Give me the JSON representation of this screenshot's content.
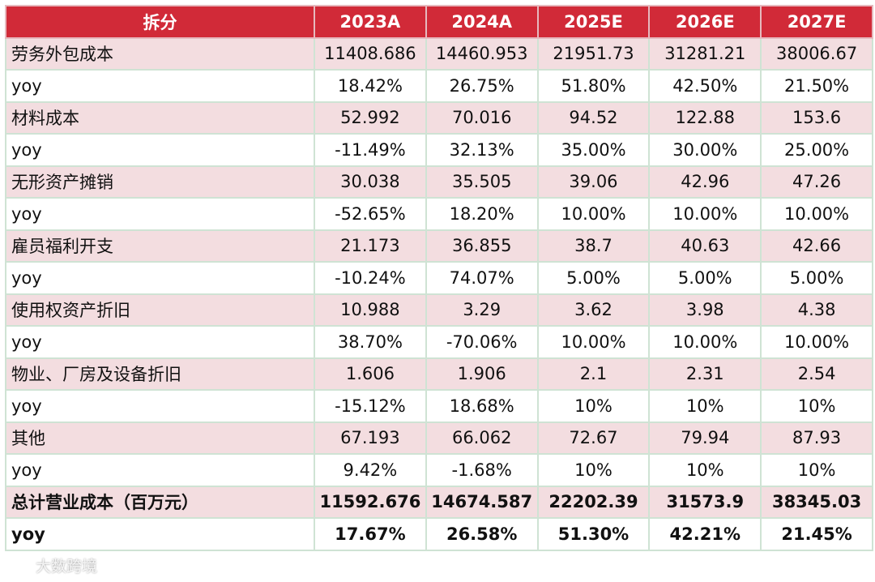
{
  "colors": {
    "header_bg": "#d12a38",
    "shaded_row": "#f3dde0",
    "grid_line": "#cfe3d4"
  },
  "header": [
    "拆分",
    "2023A",
    "2024A",
    "2025E",
    "2026E",
    "2027E"
  ],
  "rows": [
    {
      "label": "劳务外包成本",
      "values": [
        "11408.686",
        "14460.953",
        "21951.73",
        "31281.21",
        "38006.67"
      ]
    },
    {
      "label": "yoy",
      "values": [
        "18.42%",
        "26.75%",
        "51.80%",
        "42.50%",
        "21.50%"
      ]
    },
    {
      "label": "材料成本",
      "values": [
        "52.992",
        "70.016",
        "94.52",
        "122.88",
        "153.6"
      ]
    },
    {
      "label": "yoy",
      "values": [
        "-11.49%",
        "32.13%",
        "35.00%",
        "30.00%",
        "25.00%"
      ]
    },
    {
      "label": "无形资产摊销",
      "values": [
        "30.038",
        "35.505",
        "39.06",
        "42.96",
        "47.26"
      ]
    },
    {
      "label": "yoy",
      "values": [
        "-52.65%",
        "18.20%",
        "10.00%",
        "10.00%",
        "10.00%"
      ]
    },
    {
      "label": "雇员福利开支",
      "values": [
        "21.173",
        "36.855",
        "38.7",
        "40.63",
        "42.66"
      ]
    },
    {
      "label": "yoy",
      "values": [
        "-10.24%",
        "74.07%",
        "5.00%",
        "5.00%",
        "5.00%"
      ]
    },
    {
      "label": "使用权资产折旧",
      "values": [
        "10.988",
        "3.29",
        "3.62",
        "3.98",
        "4.38"
      ]
    },
    {
      "label": "yoy",
      "values": [
        "38.70%",
        "-70.06%",
        "10.00%",
        "10.00%",
        "10.00%"
      ]
    },
    {
      "label": "物业、厂房及设备折旧",
      "values": [
        "1.606",
        "1.906",
        "2.1",
        "2.31",
        "2.54"
      ]
    },
    {
      "label": "yoy",
      "values": [
        "-15.12%",
        "18.68%",
        "10%",
        "10%",
        "10%"
      ]
    },
    {
      "label": "其他",
      "values": [
        "67.193",
        "66.062",
        "72.67",
        "79.94",
        "87.93"
      ]
    },
    {
      "label": "yoy",
      "values": [
        "9.42%",
        "-1.68%",
        "10%",
        "10%",
        "10%"
      ]
    },
    {
      "label": "总计营业成本（百万元）",
      "values": [
        "11592.676",
        "14674.587",
        "22202.39",
        "31573.9",
        "38345.03"
      ]
    },
    {
      "label": "yoy",
      "values": [
        "17.67%",
        "26.58%",
        "51.30%",
        "42.21%",
        "21.45%"
      ]
    }
  ],
  "watermark": {
    "text": "大数跨境",
    "icon": "wechat-logo-icon"
  }
}
